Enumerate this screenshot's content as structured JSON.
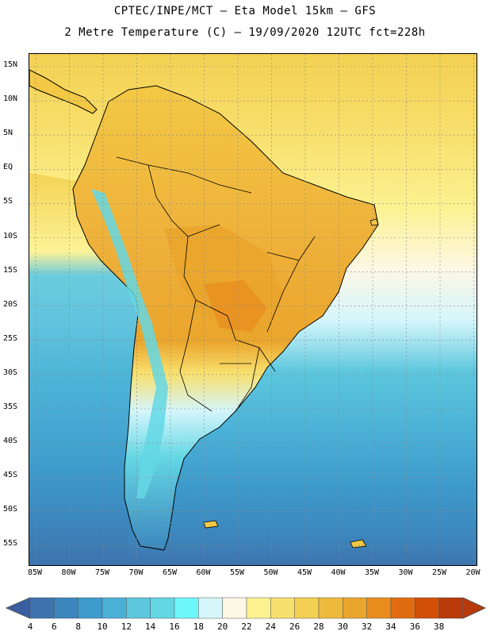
{
  "header": {
    "line1": "CPTEC/INPE/MCT –  Eta Model 15km – GFS",
    "line2": "2 Metre Temperature (C) – 19/09/2020 12UTC fct=228h"
  },
  "map": {
    "lat_labels": [
      "15N",
      "10N",
      "5N",
      "EQ",
      "5S",
      "10S",
      "15S",
      "20S",
      "25S",
      "30S",
      "35S",
      "40S",
      "45S",
      "50S",
      "55S"
    ],
    "lon_labels": [
      "85W",
      "80W",
      "75W",
      "70W",
      "65W",
      "60W",
      "55W",
      "50W",
      "45W",
      "40W",
      "35W",
      "30W",
      "25W",
      "20W"
    ],
    "field": "2 Metre Temperature"
  },
  "colorbar": {
    "labels": [
      "4",
      "6",
      "8",
      "10",
      "12",
      "14",
      "16",
      "18",
      "20",
      "22",
      "24",
      "26",
      "28",
      "30",
      "32",
      "34",
      "36",
      "38"
    ],
    "colors": [
      "#3f73ad",
      "#3c86bd",
      "#3e9bcb",
      "#4bb0d6",
      "#5cc7dd",
      "#64d7e4",
      "#6ef7fb",
      "#d5f6fb",
      "#fdf7e6",
      "#fcf291",
      "#f8e06e",
      "#f3d051",
      "#eeba3d",
      "#eaa52c",
      "#e88c1e",
      "#e06c10",
      "#d14f06",
      "#b83a0a"
    ],
    "min_color": "#3a5fa0",
    "max_color": "#b83a0a"
  }
}
